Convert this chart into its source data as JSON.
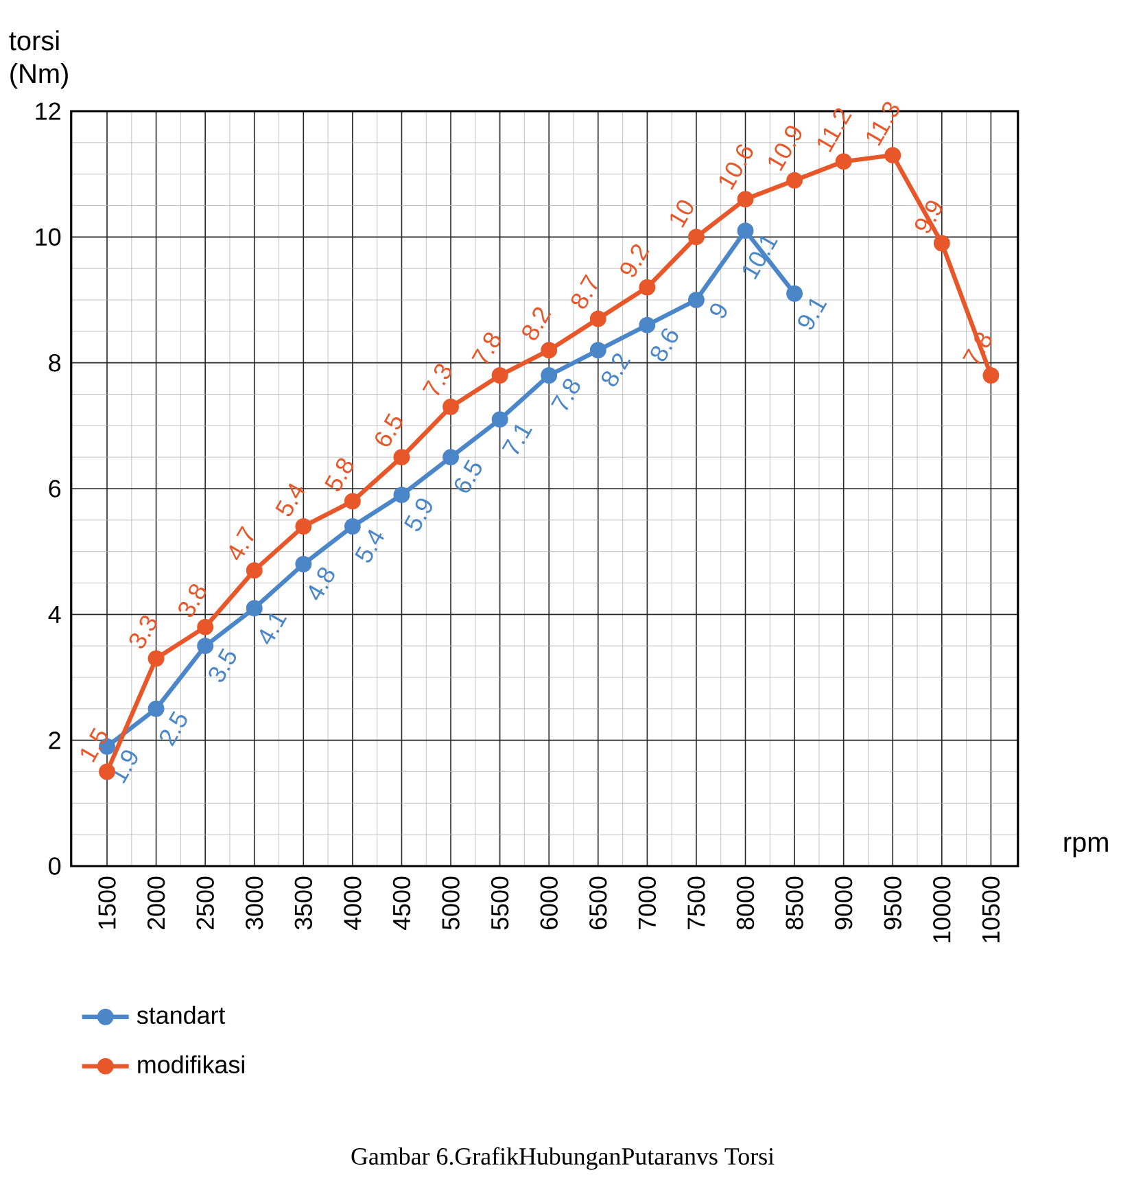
{
  "chart_data": {
    "type": "line",
    "ylabel": "torsi (Nm)",
    "xlabel": "rpm",
    "categories": [
      "1500",
      "2000",
      "2500",
      "3000",
      "3500",
      "4000",
      "4500",
      "5000",
      "5500",
      "6000",
      "6500",
      "7000",
      "7500",
      "8000",
      "8500",
      "9000",
      "9500",
      "10000",
      "10500"
    ],
    "series": [
      {
        "name": "standart",
        "color": "#4a86c8",
        "values": [
          1.9,
          2.5,
          3.5,
          4.1,
          4.8,
          5.4,
          5.9,
          6.5,
          7.1,
          7.8,
          8.2,
          8.6,
          9,
          10.1,
          9.1,
          null,
          null,
          null,
          null
        ]
      },
      {
        "name": "modifikasi",
        "color": "#e8572a",
        "values": [
          1.5,
          3.3,
          3.8,
          4.7,
          5.4,
          5.8,
          6.5,
          7.3,
          7.8,
          8.2,
          8.7,
          9.2,
          10,
          10.6,
          10.9,
          11.2,
          11.3,
          9.9,
          7.8
        ]
      }
    ],
    "ylim": [
      0,
      12
    ],
    "yticks": [
      0,
      2,
      4,
      6,
      8,
      10,
      12
    ],
    "grid": true,
    "legend": "bottom left",
    "marker": "circle",
    "line_style": "solid",
    "data_labels": true,
    "annotations": [
      "Gambar 6.GrafikHubunganPutaranvs Torsi"
    ]
  }
}
